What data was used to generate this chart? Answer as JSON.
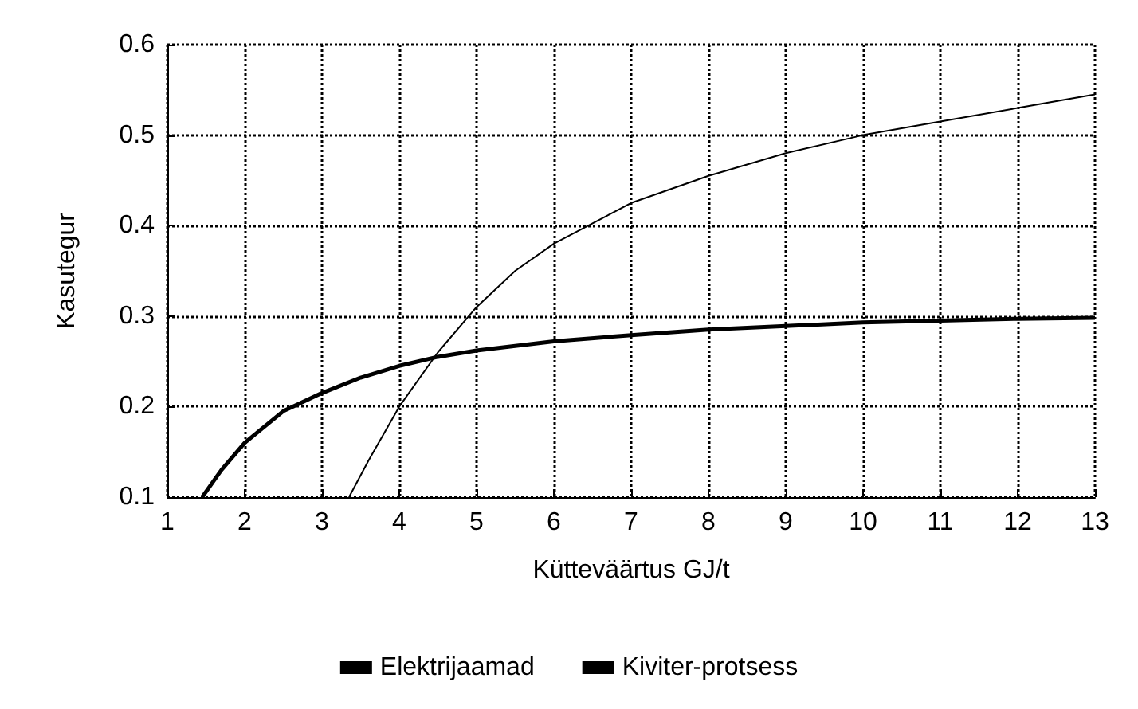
{
  "chart_data": {
    "type": "line",
    "xlabel": "Kütteväärtus GJ/t",
    "ylabel": "Kasutegur",
    "xlim": [
      1,
      13
    ],
    "xticks": [
      1,
      2,
      3,
      4,
      5,
      6,
      7,
      8,
      9,
      10,
      11,
      12,
      13
    ],
    "ylim": [
      0.1,
      0.6
    ],
    "yticks": [
      0.1,
      0.2,
      0.3,
      0.4,
      0.5,
      0.6
    ],
    "grid": true,
    "legend": "bottom",
    "marker": "none",
    "line_style": "solid",
    "series": [
      {
        "name": "Elektrijaamad",
        "color": "#000000",
        "x": [
          1.45,
          1.7,
          2,
          2.5,
          3,
          3.5,
          4,
          4.5,
          5,
          6,
          7,
          8,
          9,
          10,
          11,
          12,
          13
        ],
        "values": [
          0.1,
          0.13,
          0.16,
          0.195,
          0.215,
          0.232,
          0.245,
          0.255,
          0.262,
          0.272,
          0.279,
          0.285,
          0.289,
          0.293,
          0.295,
          0.297,
          0.298
        ]
      },
      {
        "name": "Kiviter-protsess",
        "color": "#000000",
        "x": [
          3.35,
          3.6,
          4,
          4.5,
          5,
          5.5,
          6,
          7,
          8,
          9,
          10,
          11,
          12,
          13
        ],
        "values": [
          0.1,
          0.14,
          0.2,
          0.26,
          0.31,
          0.35,
          0.38,
          0.425,
          0.455,
          0.48,
          0.5,
          0.515,
          0.53,
          0.545
        ]
      }
    ]
  }
}
